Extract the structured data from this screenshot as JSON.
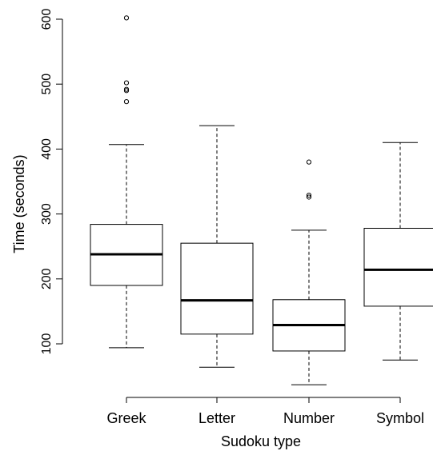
{
  "chart_data": {
    "type": "box",
    "title": "",
    "xlabel": "Sudoku type",
    "ylabel": "Time (seconds)",
    "ylim": [
      30,
      615
    ],
    "yticks": [
      100,
      200,
      300,
      400,
      500,
      600
    ],
    "categories": [
      "Greek",
      "Letter",
      "Number",
      "Symbol"
    ],
    "boxes": [
      {
        "category": "Greek",
        "whisker_low": 94,
        "q1": 190,
        "median": 238,
        "q3": 284,
        "whisker_high": 407,
        "outliers": [
          473,
          490,
          492,
          502,
          602
        ]
      },
      {
        "category": "Letter",
        "whisker_low": 64,
        "q1": 115,
        "median": 167,
        "q3": 255,
        "whisker_high": 436,
        "outliers": []
      },
      {
        "category": "Number",
        "whisker_low": 37,
        "q1": 89,
        "median": 129,
        "q3": 168,
        "whisker_high": 275,
        "outliers": [
          326,
          329,
          380
        ]
      },
      {
        "category": "Symbol",
        "whisker_low": 75,
        "q1": 158,
        "median": 214,
        "q3": 278,
        "whisker_high": 410,
        "outliers": []
      }
    ]
  }
}
